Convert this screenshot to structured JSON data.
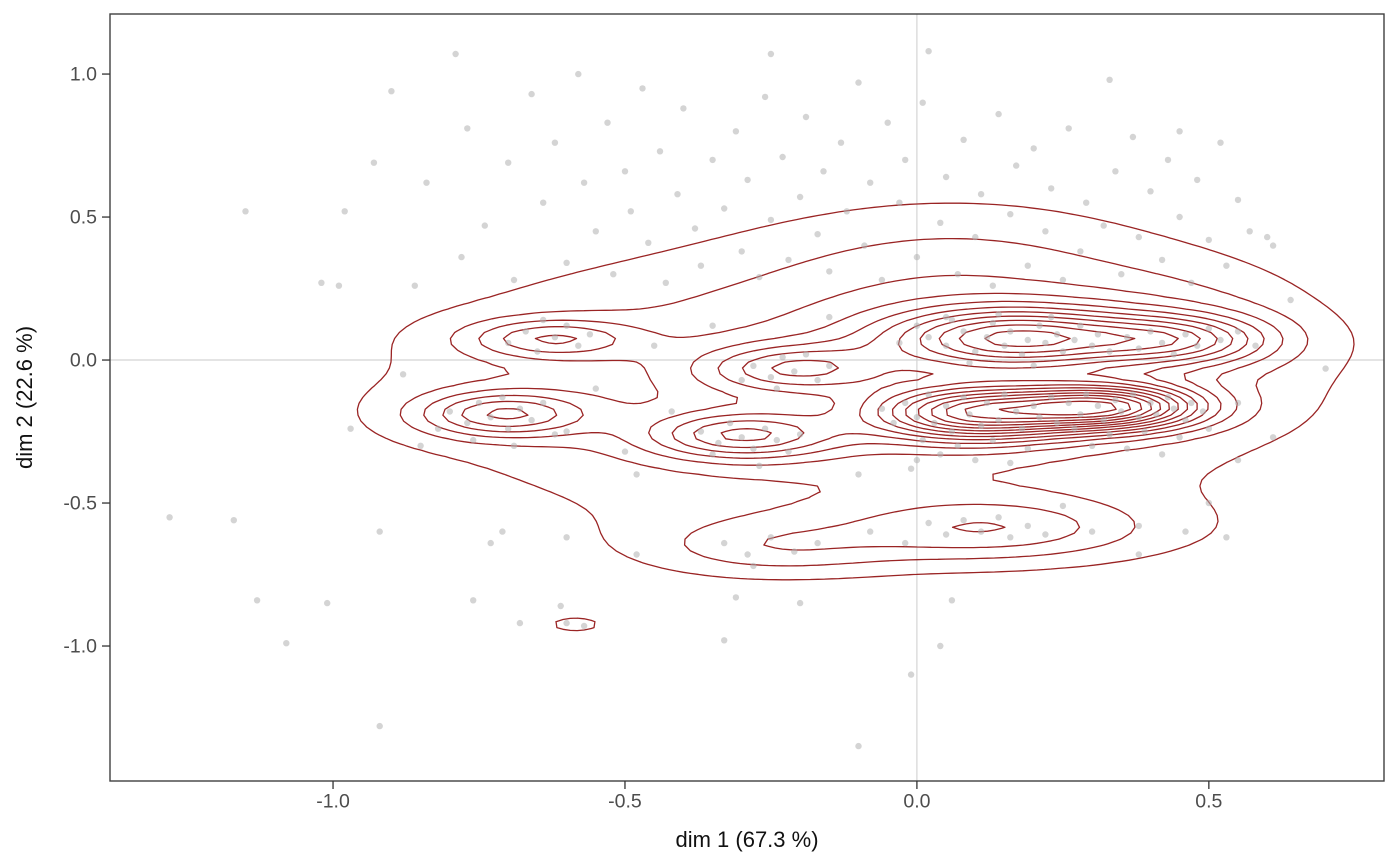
{
  "figure": {
    "background": "#ffffff",
    "panel_border_color": "#404040",
    "reference_line_color": "#d4d4d4",
    "tick_color": "#333333",
    "tick_label_color": "#4d4d4d",
    "axis_title_color": "#111111"
  },
  "chart_data": {
    "type": "scatter",
    "overlay": "2d-density-contours",
    "title": "",
    "xlabel": "dim 1 (67.3 %)",
    "ylabel": "dim 2 (22.6 %)",
    "xlim": [
      -1.382,
      0.8
    ],
    "ylim": [
      -1.472,
      1.21
    ],
    "grid": false,
    "legend_position": "none",
    "reference_lines": {
      "x": 0,
      "y": 0
    },
    "x_ticks": {
      "values": [
        -1.0,
        -0.5,
        0.0,
        0.5
      ],
      "labels": [
        "-1.0",
        "-0.5",
        "0.0",
        "0.5"
      ]
    },
    "y_ticks": {
      "values": [
        -1.0,
        -0.5,
        0.0,
        0.5,
        1.0
      ],
      "labels": [
        "-1.0",
        "-0.5",
        "0.0",
        "0.5",
        "1.0"
      ]
    },
    "point_style": {
      "color": "#b0b0b0",
      "opacity": 0.55,
      "radius": 3.2
    },
    "contour_style": {
      "color": "#9a2424",
      "width": 1.3,
      "levels": 14
    },
    "points": [
      [
        -0.98,
        0.52
      ],
      [
        -0.99,
        0.26
      ],
      [
        -0.93,
        0.69
      ],
      [
        -0.9,
        0.94
      ],
      [
        -0.86,
        0.26
      ],
      [
        -0.84,
        0.62
      ],
      [
        -0.79,
        1.07
      ],
      [
        -0.78,
        0.36
      ],
      [
        -0.77,
        0.81
      ],
      [
        -0.74,
        0.47
      ],
      [
        -0.7,
        0.69
      ],
      [
        -0.69,
        0.28
      ],
      [
        -0.66,
        0.93
      ],
      [
        -0.64,
        0.55
      ],
      [
        -0.62,
        0.76
      ],
      [
        -0.6,
        0.34
      ],
      [
        -0.58,
        1.0
      ],
      [
        -0.57,
        0.62
      ],
      [
        -0.55,
        0.45
      ],
      [
        -0.53,
        0.83
      ],
      [
        -0.52,
        0.3
      ],
      [
        -0.5,
        0.66
      ],
      [
        -0.49,
        0.52
      ],
      [
        -0.47,
        0.95
      ],
      [
        -0.46,
        0.41
      ],
      [
        -0.44,
        0.73
      ],
      [
        -0.43,
        0.27
      ],
      [
        -0.41,
        0.58
      ],
      [
        -0.4,
        0.88
      ],
      [
        -0.38,
        0.46
      ],
      [
        -0.37,
        0.33
      ],
      [
        -0.35,
        0.7
      ],
      [
        -0.25,
        1.07
      ],
      [
        -0.33,
        0.53
      ],
      [
        -0.31,
        0.8
      ],
      [
        -0.3,
        0.38
      ],
      [
        -0.29,
        0.63
      ],
      [
        -0.27,
        0.29
      ],
      [
        -0.26,
        0.92
      ],
      [
        -0.25,
        0.49
      ],
      [
        -0.23,
        0.71
      ],
      [
        -0.22,
        0.35
      ],
      [
        -0.2,
        0.57
      ],
      [
        -0.19,
        0.85
      ],
      [
        -0.17,
        0.44
      ],
      [
        -0.16,
        0.66
      ],
      [
        -0.15,
        0.31
      ],
      [
        -0.13,
        0.76
      ],
      [
        -0.12,
        0.52
      ],
      [
        -0.1,
        0.97
      ],
      [
        -0.09,
        0.4
      ],
      [
        -0.08,
        0.62
      ],
      [
        -0.06,
        0.28
      ],
      [
        -0.05,
        0.83
      ],
      [
        -0.03,
        0.55
      ],
      [
        -0.02,
        0.7
      ],
      [
        0.0,
        0.36
      ],
      [
        0.01,
        0.9
      ],
      [
        0.02,
        1.08
      ],
      [
        0.04,
        0.48
      ],
      [
        0.05,
        0.64
      ],
      [
        0.07,
        0.3
      ],
      [
        0.08,
        0.77
      ],
      [
        0.1,
        0.43
      ],
      [
        0.11,
        0.58
      ],
      [
        0.13,
        0.26
      ],
      [
        0.14,
        0.86
      ],
      [
        0.16,
        0.51
      ],
      [
        0.17,
        0.68
      ],
      [
        0.19,
        0.33
      ],
      [
        0.2,
        0.74
      ],
      [
        0.22,
        0.45
      ],
      [
        0.23,
        0.6
      ],
      [
        0.25,
        0.28
      ],
      [
        0.26,
        0.81
      ],
      [
        0.28,
        0.38
      ],
      [
        0.29,
        0.55
      ],
      [
        0.33,
        0.98
      ],
      [
        0.32,
        0.47
      ],
      [
        0.34,
        0.66
      ],
      [
        0.35,
        0.3
      ],
      [
        0.37,
        0.78
      ],
      [
        0.38,
        0.43
      ],
      [
        0.4,
        0.59
      ],
      [
        0.42,
        0.35
      ],
      [
        0.43,
        0.7
      ],
      [
        0.45,
        0.5
      ],
      [
        0.47,
        0.27
      ],
      [
        0.48,
        0.63
      ],
      [
        0.5,
        0.42
      ],
      [
        0.52,
        0.76
      ],
      [
        0.53,
        0.33
      ],
      [
        0.55,
        0.56
      ],
      [
        0.57,
        0.45
      ],
      [
        0.6,
        0.43
      ],
      [
        0.61,
        0.4
      ],
      [
        0.64,
        0.21
      ],
      [
        -1.15,
        0.52
      ],
      [
        -1.02,
        0.27
      ],
      [
        0.45,
        0.8
      ],
      [
        -0.88,
        -0.05
      ],
      [
        -0.85,
        -0.3
      ],
      [
        -0.97,
        -0.24
      ],
      [
        -0.55,
        -0.1
      ],
      [
        -0.5,
        -0.32
      ],
      [
        -0.45,
        0.05
      ],
      [
        -0.42,
        -0.18
      ],
      [
        -0.48,
        -0.4
      ],
      [
        -0.1,
        -0.4
      ],
      [
        0.0,
        -0.35
      ],
      [
        -0.6,
        -0.25
      ],
      [
        -0.15,
        0.15
      ],
      [
        0.05,
        0.15
      ],
      [
        -0.35,
        0.12
      ],
      [
        0.55,
        -0.15
      ],
      [
        0.58,
        0.05
      ],
      [
        0.61,
        -0.27
      ],
      [
        0.55,
        -0.35
      ],
      [
        0.05,
        0.05
      ],
      [
        0.08,
        0.1
      ],
      [
        0.1,
        0.03
      ],
      [
        0.12,
        0.08
      ],
      [
        0.13,
        0.13
      ],
      [
        0.15,
        0.05
      ],
      [
        0.16,
        0.1
      ],
      [
        0.18,
        0.02
      ],
      [
        0.19,
        0.07
      ],
      [
        0.21,
        0.12
      ],
      [
        0.22,
        0.06
      ],
      [
        0.24,
        0.09
      ],
      [
        0.25,
        0.03
      ],
      [
        0.27,
        0.07
      ],
      [
        0.28,
        0.12
      ],
      [
        0.3,
        0.05
      ],
      [
        0.31,
        0.09
      ],
      [
        0.33,
        0.03
      ],
      [
        0.02,
        0.08
      ],
      [
        0.0,
        0.12
      ],
      [
        -0.03,
        0.06
      ],
      [
        0.06,
        0.14
      ],
      [
        0.14,
        0.16
      ],
      [
        0.23,
        0.15
      ],
      [
        0.09,
        -0.01
      ],
      [
        0.2,
        -0.02
      ],
      [
        0.36,
        0.08
      ],
      [
        0.38,
        0.04
      ],
      [
        0.4,
        0.1
      ],
      [
        0.42,
        0.06
      ],
      [
        0.44,
        0.02
      ],
      [
        0.46,
        0.09
      ],
      [
        0.48,
        0.05
      ],
      [
        0.5,
        0.11
      ],
      [
        0.52,
        0.07
      ],
      [
        0.55,
        0.1
      ],
      [
        -0.02,
        -0.15
      ],
      [
        0.0,
        -0.2
      ],
      [
        0.02,
        -0.12
      ],
      [
        0.03,
        -0.22
      ],
      [
        0.05,
        -0.16
      ],
      [
        0.06,
        -0.25
      ],
      [
        0.08,
        -0.13
      ],
      [
        0.09,
        -0.19
      ],
      [
        0.11,
        -0.23
      ],
      [
        0.12,
        -0.15
      ],
      [
        0.14,
        -0.21
      ],
      [
        0.15,
        -0.12
      ],
      [
        0.17,
        -0.18
      ],
      [
        0.18,
        -0.24
      ],
      [
        0.2,
        -0.16
      ],
      [
        0.21,
        -0.2
      ],
      [
        0.23,
        -0.13
      ],
      [
        0.24,
        -0.22
      ],
      [
        0.07,
        -0.3
      ],
      [
        0.13,
        -0.28
      ],
      [
        0.19,
        -0.31
      ],
      [
        0.01,
        -0.28
      ],
      [
        -0.04,
        -0.22
      ],
      [
        -0.06,
        -0.17
      ],
      [
        0.1,
        -0.35
      ],
      [
        0.16,
        -0.36
      ],
      [
        0.04,
        -0.33
      ],
      [
        -0.01,
        -0.38
      ],
      [
        0.26,
        -0.15
      ],
      [
        0.28,
        -0.19
      ],
      [
        0.29,
        -0.12
      ],
      [
        0.31,
        -0.16
      ],
      [
        0.32,
        -0.21
      ],
      [
        0.34,
        -0.14
      ],
      [
        0.35,
        -0.18
      ],
      [
        0.37,
        -0.12
      ],
      [
        0.38,
        -0.2
      ],
      [
        0.4,
        -0.15
      ],
      [
        0.41,
        -0.19
      ],
      [
        0.43,
        -0.13
      ],
      [
        0.44,
        -0.17
      ],
      [
        0.46,
        -0.21
      ],
      [
        0.47,
        -0.15
      ],
      [
        0.49,
        -0.18
      ],
      [
        0.27,
        -0.24
      ],
      [
        0.33,
        -0.26
      ],
      [
        0.39,
        -0.25
      ],
      [
        0.45,
        -0.27
      ],
      [
        0.3,
        -0.3
      ],
      [
        0.36,
        -0.31
      ],
      [
        0.42,
        -0.33
      ],
      [
        0.5,
        -0.24
      ],
      [
        -0.8,
        -0.18
      ],
      [
        -0.77,
        -0.22
      ],
      [
        -0.75,
        -0.15
      ],
      [
        -0.73,
        -0.2
      ],
      [
        -0.71,
        -0.13
      ],
      [
        -0.7,
        -0.24
      ],
      [
        -0.68,
        -0.17
      ],
      [
        -0.66,
        -0.21
      ],
      [
        -0.64,
        -0.15
      ],
      [
        -0.76,
        -0.28
      ],
      [
        -0.69,
        -0.3
      ],
      [
        -0.62,
        -0.26
      ],
      [
        -0.82,
        -0.24
      ],
      [
        -0.7,
        0.06
      ],
      [
        -0.67,
        0.1
      ],
      [
        -0.65,
        0.03
      ],
      [
        -0.62,
        0.08
      ],
      [
        -0.6,
        0.12
      ],
      [
        -0.58,
        0.05
      ],
      [
        -0.56,
        0.09
      ],
      [
        -0.64,
        0.14
      ],
      [
        -0.28,
        -0.02
      ],
      [
        -0.25,
        -0.06
      ],
      [
        -0.23,
        0.01
      ],
      [
        -0.21,
        -0.04
      ],
      [
        -0.19,
        0.02
      ],
      [
        -0.17,
        -0.07
      ],
      [
        -0.15,
        -0.02
      ],
      [
        -0.24,
        -0.1
      ],
      [
        -0.3,
        -0.07
      ],
      [
        -0.37,
        -0.25
      ],
      [
        -0.34,
        -0.29
      ],
      [
        -0.32,
        -0.22
      ],
      [
        -0.3,
        -0.27
      ],
      [
        -0.28,
        -0.31
      ],
      [
        -0.26,
        -0.24
      ],
      [
        -0.24,
        -0.28
      ],
      [
        -0.22,
        -0.32
      ],
      [
        -0.35,
        -0.33
      ],
      [
        -0.27,
        -0.37
      ],
      [
        -0.2,
        -0.26
      ],
      [
        0.02,
        -0.57
      ],
      [
        0.05,
        -0.61
      ],
      [
        0.08,
        -0.56
      ],
      [
        0.11,
        -0.6
      ],
      [
        0.14,
        -0.55
      ],
      [
        0.16,
        -0.62
      ],
      [
        0.19,
        -0.58
      ],
      [
        0.22,
        -0.61
      ],
      [
        0.25,
        -0.51
      ],
      [
        0.3,
        -0.6
      ],
      [
        -0.33,
        -0.64
      ],
      [
        -0.29,
        -0.68
      ],
      [
        -0.25,
        -0.62
      ],
      [
        -0.21,
        -0.67
      ],
      [
        -0.17,
        -0.64
      ],
      [
        -0.28,
        -0.72
      ],
      [
        0.38,
        -0.58
      ],
      [
        0.46,
        -0.6
      ],
      [
        0.5,
        -0.5
      ],
      [
        0.53,
        -0.62
      ],
      [
        -0.08,
        -0.6
      ],
      [
        -0.02,
        -0.64
      ],
      [
        0.38,
        -0.68
      ],
      [
        -0.48,
        -0.68
      ],
      [
        -0.6,
        -0.62
      ],
      [
        -0.71,
        -0.6
      ],
      [
        -0.73,
        -0.64
      ],
      [
        -0.92,
        -0.6
      ],
      [
        -0.6,
        -0.92
      ],
      [
        -0.57,
        -0.93
      ],
      [
        -1.28,
        -0.55
      ],
      [
        -1.17,
        -0.56
      ],
      [
        -1.13,
        -0.84
      ],
      [
        -1.08,
        -0.99
      ],
      [
        -1.01,
        -0.85
      ],
      [
        -0.92,
        -1.28
      ],
      [
        -0.76,
        -0.84
      ],
      [
        -0.68,
        -0.92
      ],
      [
        -0.61,
        -0.86
      ],
      [
        -0.31,
        -0.83
      ],
      [
        -0.2,
        -0.85
      ],
      [
        -0.33,
        -0.98
      ],
      [
        -0.01,
        -1.1
      ],
      [
        -0.1,
        -1.35
      ],
      [
        0.06,
        -0.84
      ],
      [
        0.04,
        -1.0
      ],
      [
        0.7,
        -0.03
      ]
    ],
    "density_contour_model": {
      "note": "gaussian mixture approximating the plotted 2D kernel density estimate",
      "components": [
        {
          "x": -0.12,
          "y": -0.08,
          "sx": 0.5,
          "sy": 0.3,
          "w": 0.4
        },
        {
          "x": 0.08,
          "y": 0.32,
          "sx": 0.24,
          "sy": 0.18,
          "w": 0.17
        },
        {
          "x": 0.45,
          "y": 0.12,
          "sx": 0.16,
          "sy": 0.15,
          "w": 0.14
        },
        {
          "x": 0.17,
          "y": 0.075,
          "sx": 0.15,
          "sy": 0.075,
          "w": 0.95
        },
        {
          "x": 0.45,
          "y": 0.07,
          "sx": 0.11,
          "sy": 0.06,
          "w": 0.55
        },
        {
          "x": 0.1,
          "y": -0.185,
          "sx": 0.12,
          "sy": 0.065,
          "w": 1.1
        },
        {
          "x": 0.33,
          "y": -0.165,
          "sx": 0.11,
          "sy": 0.055,
          "w": 1.25
        },
        {
          "x": -0.71,
          "y": -0.19,
          "sx": 0.1,
          "sy": 0.055,
          "w": 0.55
        },
        {
          "x": -0.63,
          "y": 0.075,
          "sx": 0.1,
          "sy": 0.048,
          "w": 0.4
        },
        {
          "x": -0.21,
          "y": -0.03,
          "sx": 0.11,
          "sy": 0.058,
          "w": 0.45
        },
        {
          "x": -0.3,
          "y": -0.265,
          "sx": 0.11,
          "sy": 0.056,
          "w": 0.55
        },
        {
          "x": 0.13,
          "y": -0.59,
          "sx": 0.17,
          "sy": 0.075,
          "w": 0.29
        },
        {
          "x": -0.25,
          "y": -0.66,
          "sx": 0.15,
          "sy": 0.07,
          "w": 0.21
        },
        {
          "x": 0.05,
          "y": -0.6,
          "sx": 0.4,
          "sy": 0.11,
          "w": 0.1
        },
        {
          "x": -0.585,
          "y": -0.925,
          "sx": 0.055,
          "sy": 0.035,
          "w": 0.14
        }
      ]
    }
  }
}
